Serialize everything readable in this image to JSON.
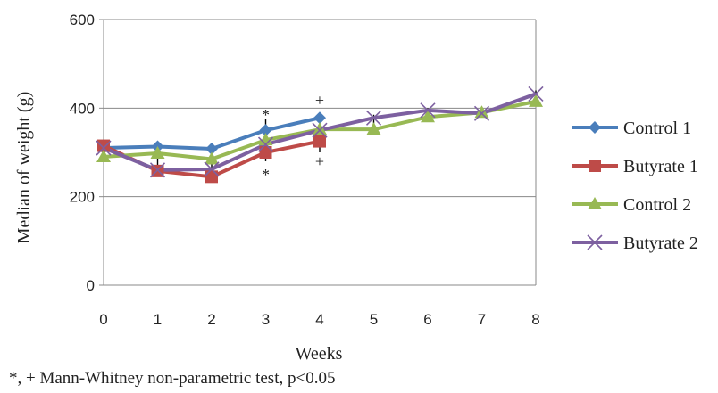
{
  "chart_data": {
    "type": "line",
    "xlabel": "Weeks",
    "ylabel": "Median of weight (g)",
    "x": [
      0,
      1,
      2,
      3,
      4,
      5,
      6,
      7,
      8
    ],
    "xlim": [
      0,
      8
    ],
    "ylim": [
      0,
      600
    ],
    "y_ticks": [
      0,
      200,
      400,
      600
    ],
    "grid": "horizontal",
    "legend_position": "right",
    "series": [
      {
        "name": "Control 1",
        "marker": "diamond",
        "color": "#4a7ebb",
        "values": [
          310,
          313,
          308,
          350,
          378,
          null,
          null,
          null,
          null
        ]
      },
      {
        "name": "Butyrate 1",
        "marker": "square",
        "color": "#be4b48",
        "values": [
          315,
          258,
          245,
          300,
          325,
          null,
          null,
          null,
          null
        ]
      },
      {
        "name": "Control 2",
        "marker": "triangle",
        "color": "#98b954",
        "values": [
          290,
          298,
          285,
          328,
          352,
          352,
          380,
          390,
          415
        ]
      },
      {
        "name": "Butyrate 2",
        "marker": "x",
        "color": "#7d60a0",
        "values": [
          310,
          260,
          262,
          318,
          350,
          378,
          395,
          388,
          432
        ]
      }
    ],
    "error_bars": [
      {
        "x": 3,
        "low": 280,
        "high": 375
      },
      {
        "x": 4,
        "low": 300,
        "high": 375
      },
      {
        "x": 5,
        "low": 358,
        "high": 385
      },
      {
        "x": 6,
        "low": 378,
        "high": 400
      },
      {
        "x": 8,
        "low": 405,
        "high": 440
      },
      {
        "x": 0,
        "low": 285,
        "high": 325
      },
      {
        "x": 1,
        "low": 250,
        "high": 320
      },
      {
        "x": 2,
        "low": 238,
        "high": 310
      }
    ],
    "annotations": [
      {
        "text": "*",
        "x": 3,
        "y": 385
      },
      {
        "text": "*",
        "x": 3,
        "y": 250
      },
      {
        "text": "+",
        "x": 4,
        "y": 418
      },
      {
        "text": "+",
        "x": 4,
        "y": 280
      }
    ]
  },
  "footnote": "*, + Mann-Whitney non-parametric test, p<0.05"
}
